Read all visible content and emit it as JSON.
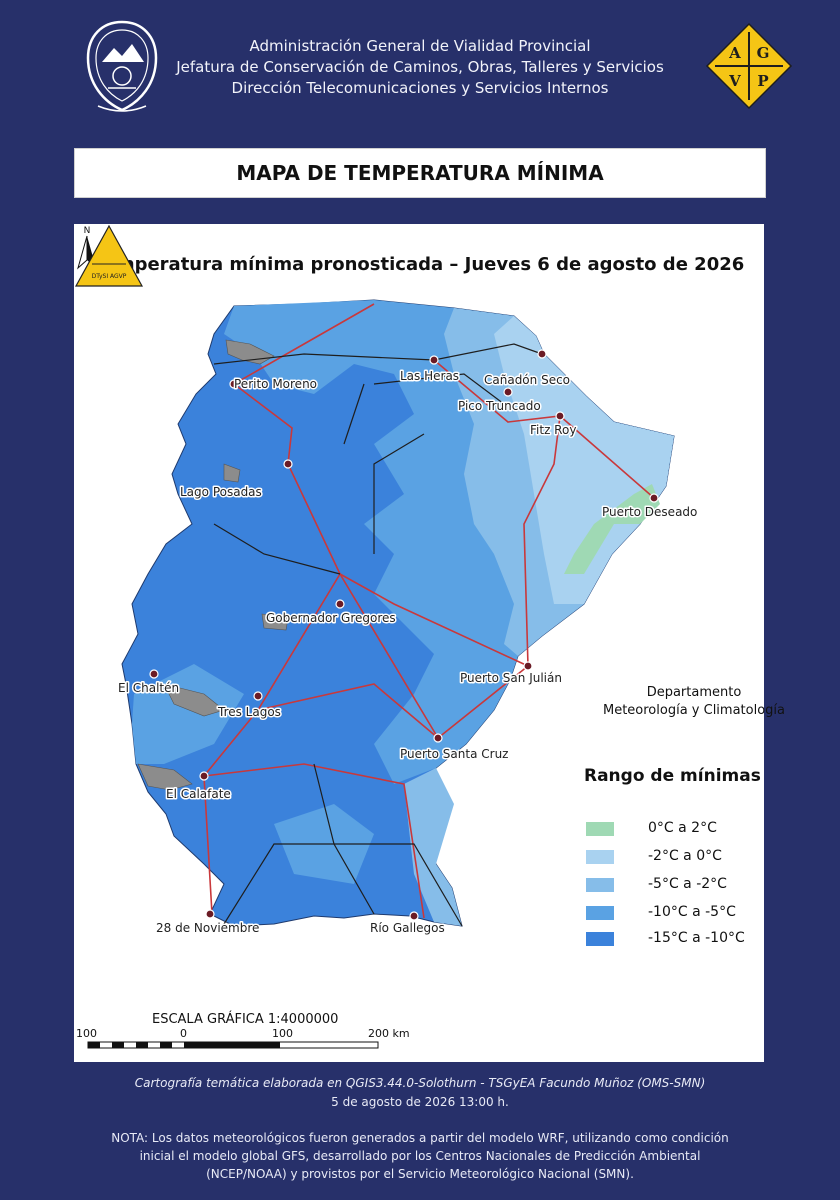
{
  "header": {
    "line1": "Administración General de Vialidad Provincial",
    "line2": "Jefatura de Conservación de Caminos, Obras, Talleres y Servicios",
    "line3": "Dirección Telecomunicaciones y Servicios Internos",
    "agvp_letters": [
      "A",
      "G",
      "V",
      "P"
    ]
  },
  "title": "MAPA DE TEMPERATURA MÍNIMA",
  "map": {
    "subtitle": "Temperatura mínima pronosticada – Jueves 6 de agosto de 2026",
    "north_label": "N",
    "cities": [
      {
        "name": "Perito Moreno"
      },
      {
        "name": "Las Heras"
      },
      {
        "name": "Cañadón Seco"
      },
      {
        "name": "Pico Truncado"
      },
      {
        "name": "Fitz Roy"
      },
      {
        "name": "Lago Posadas"
      },
      {
        "name": "Puerto Deseado"
      },
      {
        "name": "Gobernador Gregores"
      },
      {
        "name": "Puerto San Julián"
      },
      {
        "name": "El Chaltén"
      },
      {
        "name": "Tres Lagos"
      },
      {
        "name": "Puerto Santa Cruz"
      },
      {
        "name": "El Calafate"
      },
      {
        "name": "28 de Noviembre"
      },
      {
        "name": "Río Gallegos"
      }
    ],
    "department": {
      "logo_text": "DTySI AGVP",
      "line1": "Departamento",
      "line2": "Meteorología y Climatología"
    },
    "legend": {
      "title": "Rango de mínimas",
      "items": [
        {
          "label": "0°C a 2°C",
          "color": "#9fd9b4"
        },
        {
          "label": "-2°C a 0°C",
          "color": "#a9d2f0"
        },
        {
          "label": "-5°C a -2°C",
          "color": "#86bde9"
        },
        {
          "label": "-10°C a -5°C",
          "color": "#5aa2e3"
        },
        {
          "label": "-15°C a -10°C",
          "color": "#3b82db"
        }
      ]
    },
    "scale": {
      "title": "ESCALA GRÁFICA 1:4000000",
      "labels": [
        "100",
        "0",
        "100",
        "200 km"
      ]
    }
  },
  "footer": {
    "credit": "Cartografía temática elaborada en QGIS3.44.0-Solothurn - TSGyEA Facundo Muñoz (OMS-SMN)",
    "date": "5 de agosto de 2026 13:00 h.",
    "note1": "NOTA: Los datos meteorológicos fueron generados a partir del modelo WRF, utilizando como condición",
    "note2": "inicial el modelo global GFS, desarrollado por los Centros Nacionales de Predicción Ambiental",
    "note3": "(NCEP/NOAA) y provistos por el Servicio Meteorológico Nacional (SMN)."
  }
}
